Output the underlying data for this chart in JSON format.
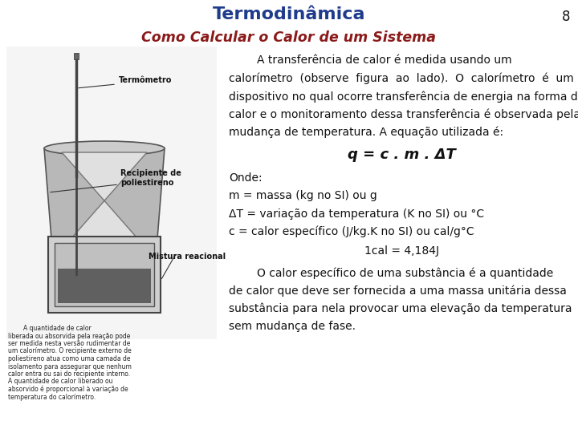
{
  "title": "Termodinâmica",
  "subtitle": "Como Calcular o Calor de um Sistema",
  "page_number": "8",
  "title_color": "#1F3B8C",
  "subtitle_color": "#8B1A1A",
  "body_color": "#111111",
  "equation_color": "#111111",
  "bg_color": "#FFFFFF",
  "para1_lines": [
    "        A transferência de calor é medida usando um",
    "calorímetro  (observe  figura  ao  lado).  O  calorímetro  é  um",
    "dispositivo no qual ocorre transferência de energia na forma de",
    "calor e o monitoramento dessa transferência é observada pela",
    "mudança de temperatura. A equação utilizada é:"
  ],
  "equation": "q = c . m . ΔT",
  "onde": "Onde:",
  "bullet1": "m = massa (kg no SI) ou g",
  "bullet2": "ΔT = variação da temperatura (K no SI) ou °C",
  "bullet3": "c = calor específico (J/kg.K no SI) ou cal/g°C",
  "cal_line": "1cal = 4,184J",
  "para2_lines": [
    "        O calor específico de uma substância é a quantidade",
    "de calor que deve ser fornecida a uma massa unitária dessa",
    "substância para nela provocar uma elevação da temperatura",
    "sem mudança de fase."
  ],
  "caption_lines": [
    "        A quantidade de calor",
    "liberada ou absorvida pela reação pode",
    "ser medida nesta versão rudimentar de",
    "um calorímetro. O recipiente externo de",
    "poliestireno atua como uma camada de",
    "isolamento para assegurar que nenhum",
    "calor entra ou sai do recipiente interno.",
    "A quantidade de calor liberado ou",
    "absorvido é proporcional à variação de",
    "temperatura do calorímetro."
  ],
  "label_termometro": "Termômetro",
  "label_recipiente": "Recipiente de\npoliestireno",
  "label_mistura": "Mistura reacional"
}
